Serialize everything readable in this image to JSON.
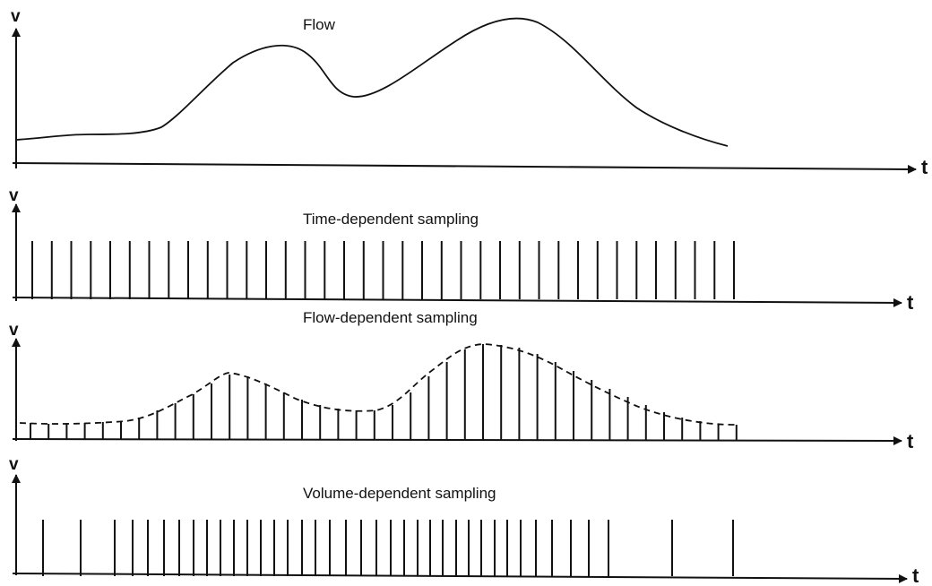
{
  "colors": {
    "ink": "#111111",
    "paper": "#ffffff"
  },
  "panels": [
    {
      "id": "flow",
      "title": "Flow",
      "y_label": "v",
      "x_label": "t"
    },
    {
      "id": "time",
      "title": "Time-dependent sampling",
      "y_label": "v",
      "x_label": "t"
    },
    {
      "id": "flowdep",
      "title": "Flow-dependent sampling",
      "y_label": "v",
      "x_label": "t"
    },
    {
      "id": "volume",
      "title": "Volume-dependent sampling",
      "y_label": "v",
      "x_label": "t"
    }
  ]
}
